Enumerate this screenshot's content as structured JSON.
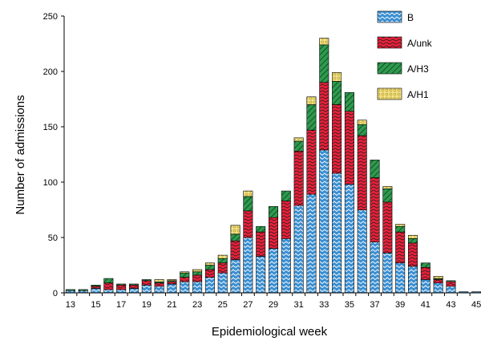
{
  "chart_data": {
    "type": "bar",
    "stacked": true,
    "title": "",
    "xlabel": "Epidemiological week",
    "ylabel": "Number of admissions",
    "ylim": [
      0,
      250
    ],
    "yticks": [
      0,
      50,
      100,
      150,
      200,
      250
    ],
    "grid": false,
    "legend_position": "top-right",
    "categories": [
      13,
      14,
      15,
      16,
      17,
      18,
      19,
      20,
      21,
      22,
      23,
      24,
      25,
      26,
      27,
      28,
      29,
      30,
      31,
      32,
      33,
      34,
      35,
      36,
      37,
      38,
      39,
      40,
      41,
      42,
      43,
      44,
      45
    ],
    "xtick_labels": [
      "13",
      "15",
      "17",
      "19",
      "21",
      "23",
      "25",
      "27",
      "29",
      "31",
      "33",
      "35",
      "37",
      "39",
      "41",
      "43",
      "45"
    ],
    "series": [
      {
        "name": "B",
        "color": "#3a8fd1",
        "values": [
          2,
          2,
          4,
          3,
          3,
          4,
          7,
          6,
          8,
          10,
          10,
          14,
          18,
          30,
          50,
          33,
          40,
          49,
          79,
          89,
          129,
          108,
          98,
          75,
          46,
          36,
          27,
          24,
          12,
          9,
          6,
          1,
          1
        ]
      },
      {
        "name": "A/unk",
        "color": "#e8213a",
        "values": [
          0,
          0,
          2,
          6,
          4,
          3,
          4,
          3,
          2,
          4,
          6,
          7,
          9,
          17,
          24,
          22,
          28,
          34,
          49,
          58,
          61,
          62,
          66,
          67,
          58,
          46,
          28,
          21,
          11,
          3,
          4,
          0,
          0
        ]
      },
      {
        "name": "A/H3",
        "color": "#2e9a4e",
        "values": [
          1,
          1,
          1,
          4,
          1,
          1,
          1,
          1,
          1,
          4,
          3,
          4,
          4,
          6,
          13,
          5,
          10,
          9,
          9,
          23,
          34,
          21,
          17,
          10,
          16,
          12,
          5,
          4,
          4,
          1,
          1,
          0,
          0
        ]
      },
      {
        "name": "A/H1",
        "color": "#f3e48a",
        "values": [
          0,
          0,
          0,
          0,
          0,
          0,
          0,
          2,
          1,
          1,
          2,
          2,
          3,
          8,
          5,
          0,
          0,
          0,
          3,
          7,
          6,
          8,
          0,
          4,
          0,
          2,
          2,
          3,
          0,
          2,
          0,
          0,
          0
        ]
      }
    ]
  }
}
